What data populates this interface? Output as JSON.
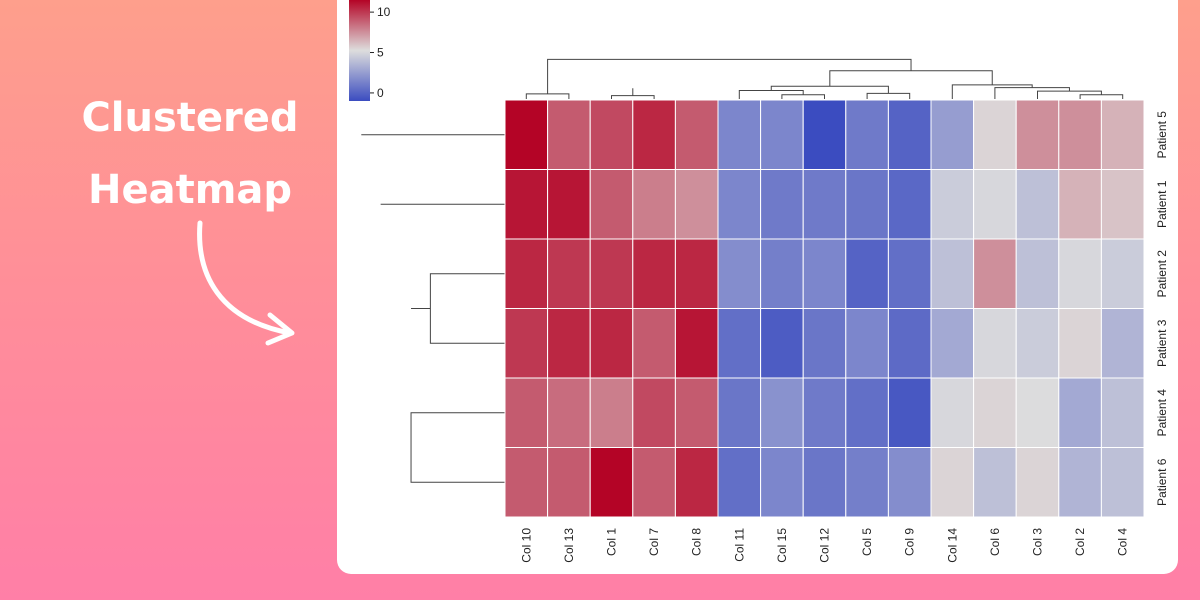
{
  "headline": {
    "line1": "Clustered",
    "line2": "Heatmap"
  },
  "icons": {
    "arrow": "curved-arrow-icon"
  },
  "chart_data": {
    "type": "heatmap",
    "title": "",
    "xlabel": "",
    "ylabel": "",
    "columns": [
      "Col 10",
      "Col 13",
      "Col 1",
      "Col 7",
      "Col 8",
      "Col 11",
      "Col 15",
      "Col 12",
      "Col 5",
      "Col 9",
      "Col 14",
      "Col 6",
      "Col 3",
      "Col 2",
      "Col 4"
    ],
    "rows": [
      "Patient 5",
      "Patient 1",
      "Patient 2",
      "Patient 3",
      "Patient 4",
      "Patient 6"
    ],
    "values": [
      [
        11.5,
        9.0,
        9.5,
        10.5,
        9.0,
        1.5,
        1.5,
        -1.0,
        1.0,
        0,
        2.5,
        5.5,
        7.5,
        7.5,
        6.5
      ],
      [
        11.0,
        11.0,
        9.0,
        8.0,
        7.5,
        1.5,
        1.0,
        1.0,
        0.8,
        0.2,
        4.5,
        5.0,
        4.0,
        6.5,
        6.0
      ],
      [
        10.5,
        10.0,
        10.0,
        10.5,
        10.5,
        1.8,
        1.2,
        1.5,
        0,
        0.5,
        4.0,
        7.5,
        4.0,
        5.0,
        4.5
      ],
      [
        10.0,
        10.5,
        10.5,
        9.0,
        11.0,
        0.5,
        -0.3,
        0.8,
        1.5,
        0.3,
        3.0,
        5.0,
        4.5,
        5.5,
        3.5
      ],
      [
        9.0,
        8.5,
        8.0,
        9.5,
        9.0,
        0.8,
        2.0,
        1.0,
        0.5,
        -0.5,
        5.0,
        5.5,
        5.2,
        3.0,
        4.0
      ],
      [
        9.0,
        9.0,
        11.5,
        9.0,
        10.5,
        0.5,
        1.5,
        0.8,
        1.2,
        1.8,
        5.5,
        4.0,
        5.5,
        3.5,
        4.0
      ]
    ],
    "vmin": -1,
    "vmax": 11.5,
    "colormap": [
      "#3b4cc0",
      "#dddddd",
      "#b40426"
    ],
    "colorbar": {
      "ticks": [
        0,
        5,
        10
      ],
      "range": [
        -1,
        11.5
      ]
    },
    "col_dendrogram": [
      [
        0,
        1
      ],
      [
        2,
        3
      ],
      [
        -2,
        4
      ],
      [
        -1,
        -3
      ],
      [
        6,
        7
      ],
      [
        8,
        9
      ],
      [
        5,
        -4
      ],
      [
        -5,
        -6
      ],
      [
        13,
        14
      ],
      [
        12,
        -8
      ],
      [
        11,
        -9
      ],
      [
        10,
        -10
      ],
      [
        -7,
        -11
      ],
      [
        0,
        -12
      ]
    ],
    "col_heights": [
      0.18,
      0.12,
      0.28,
      0.38,
      0.15,
      0.2,
      0.3,
      0.45,
      0.15,
      0.28,
      0.4,
      0.5,
      1.0,
      1.4,
      3.5
    ],
    "row_dendrogram": [
      [
        4,
        5
      ],
      [
        2,
        3
      ],
      [
        -1,
        -2
      ],
      [
        1,
        -3
      ],
      [
        0,
        -4
      ]
    ],
    "row_heights": [
      0.34,
      0.27,
      0.34,
      0.45,
      0.52,
      0.55
    ]
  }
}
